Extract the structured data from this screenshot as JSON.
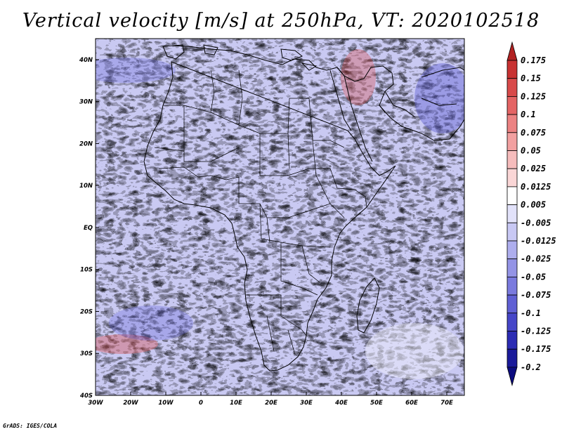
{
  "title": "Vertical velocity [m/s] at 250hPa, VT: 2020102518",
  "credit": "GrADS: IGES/COLA",
  "map": {
    "region": "Africa",
    "lon_range": [
      -30,
      75
    ],
    "lat_range": [
      -40,
      45
    ],
    "x_ticks": [
      "30W",
      "20W",
      "10W",
      "0",
      "10E",
      "20E",
      "30E",
      "40E",
      "50E",
      "60E",
      "70E"
    ],
    "x_tick_lons": [
      -30,
      -20,
      -10,
      0,
      10,
      20,
      30,
      40,
      50,
      60,
      70
    ],
    "y_ticks": [
      "40N",
      "30N",
      "20N",
      "10N",
      "EQ",
      "10S",
      "20S",
      "30S",
      "40S"
    ],
    "y_tick_lats": [
      40,
      30,
      20,
      10,
      0,
      -10,
      -20,
      -30,
      -40
    ]
  },
  "colorbar": {
    "labels": [
      "0.175",
      "0.15",
      "0.125",
      "0.1",
      "0.075",
      "0.05",
      "0.025",
      "0.0125",
      "0.005",
      "-0.005",
      "-0.0125",
      "-0.025",
      "-0.05",
      "-0.075",
      "-0.1",
      "-0.125",
      "-0.175",
      "-0.2"
    ],
    "colors": [
      "#b22222",
      "#c83232",
      "#d84a4a",
      "#e46464",
      "#ec8282",
      "#f2a0a0",
      "#f6bcbc",
      "#fad6d6",
      "#ffffff",
      "#e2e2fa",
      "#c8c8f4",
      "#aeaeee",
      "#9494e6",
      "#7a7ade",
      "#6060d4",
      "#4646c8",
      "#2c2cb4",
      "#1a1a9a",
      "#0c0c80"
    ]
  }
}
